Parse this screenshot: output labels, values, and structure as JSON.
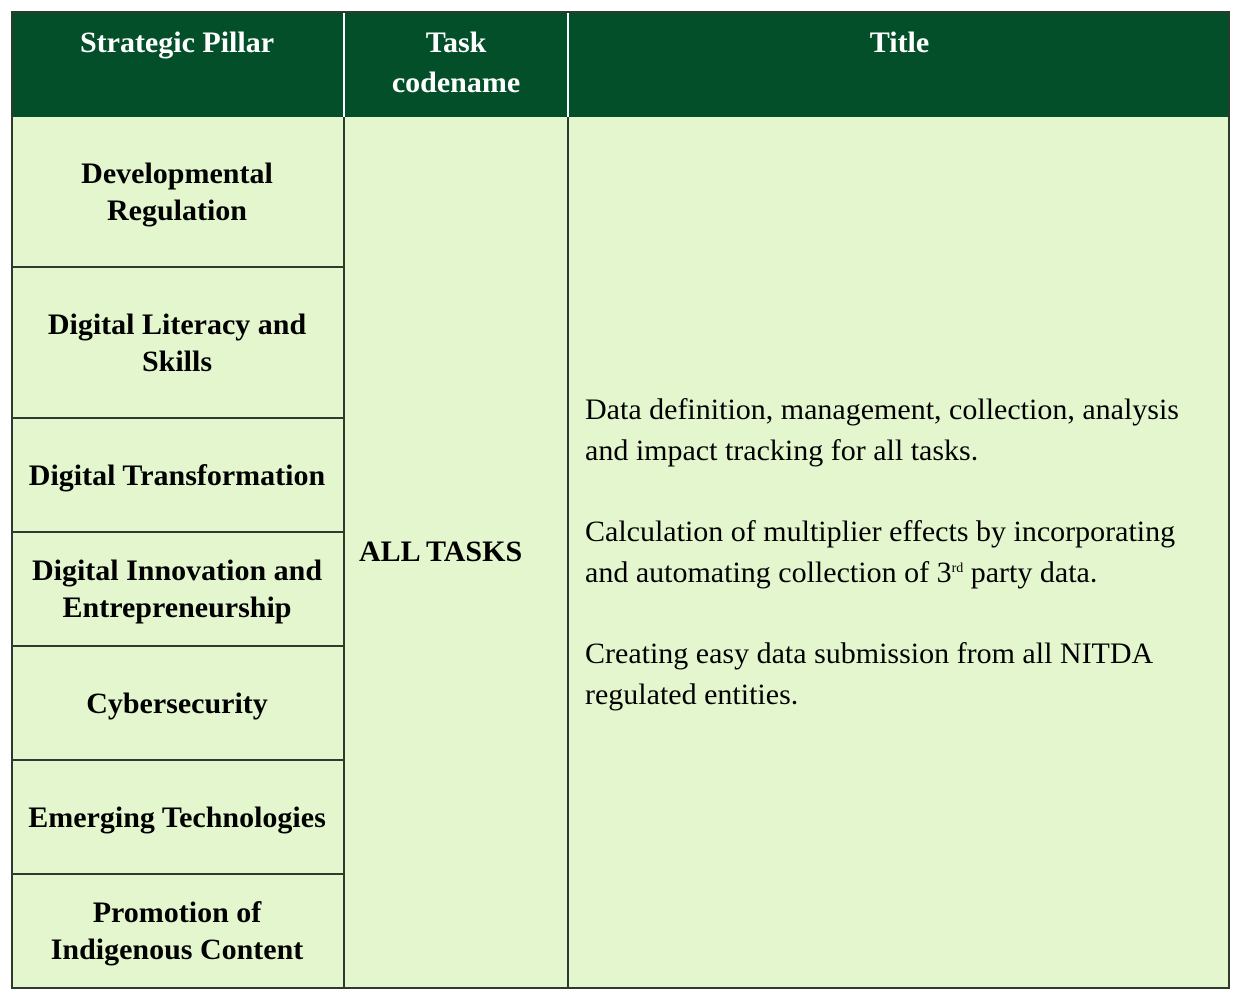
{
  "table": {
    "headers": {
      "pillar": "Strategic Pillar",
      "task": "Task codename",
      "title": "Title"
    },
    "pillars": [
      "Developmental Regulation",
      "Digital Literacy and Skills",
      "Digital Transformation",
      "Digital Innovation and Entrepreneurship",
      "Cybersecurity",
      "Emerging Technologies",
      "Promotion of Indigenous Content"
    ],
    "task_codename": "ALL TASKS",
    "title_paragraphs": {
      "p1": "Data definition, management, collection, analysis and impact tracking for all tasks.",
      "p2_before": "Calculation of multiplier effects by incorporating and automating collection of 3",
      "p2_sup": "rd",
      "p2_after": " party data.",
      "p3": "Creating easy data submission from all NITDA regulated entities."
    }
  },
  "colors": {
    "header_bg": "#024f2a",
    "body_bg": "#e3f6cd",
    "border": "#2f3a2f"
  }
}
